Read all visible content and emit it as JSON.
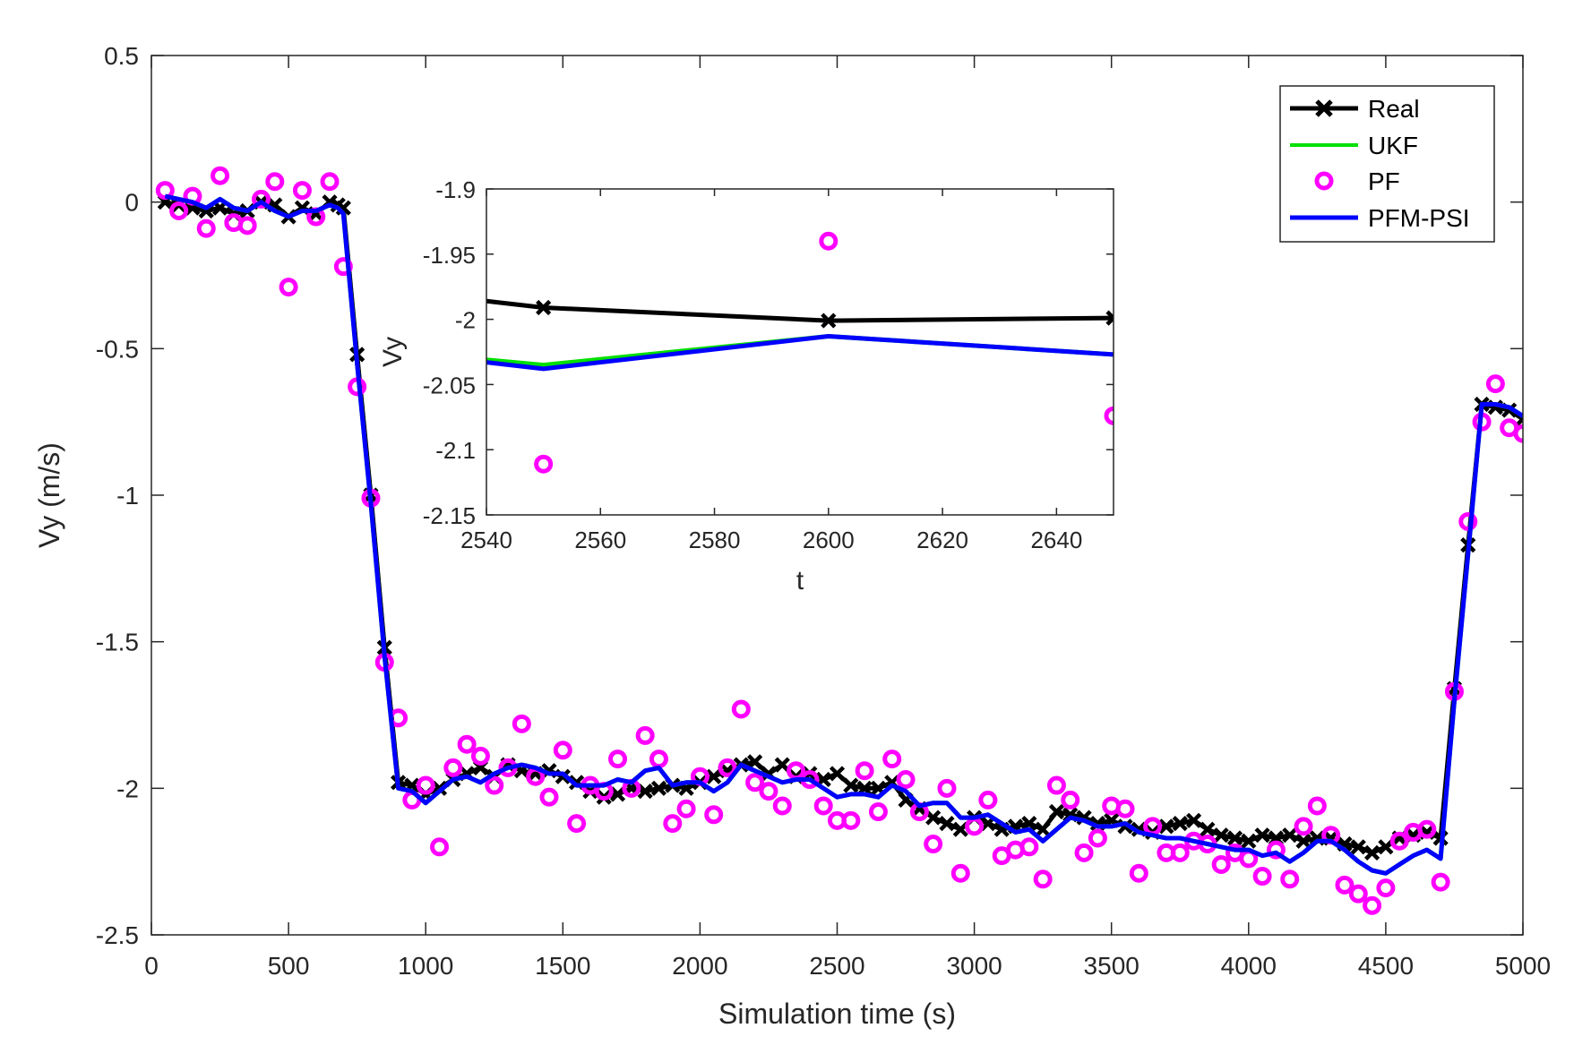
{
  "chart_data": [
    {
      "type": "line",
      "id": "main",
      "xlabel": "Simulation time  (s)",
      "ylabel": "Vy (m/s)",
      "xlim": [
        0,
        5000
      ],
      "ylim": [
        -2.5,
        0.5
      ],
      "xticks": [
        0,
        500,
        1000,
        1500,
        2000,
        2500,
        3000,
        3500,
        4000,
        4500,
        5000
      ],
      "yticks": [
        0.5,
        0,
        -0.5,
        -1,
        -1.5,
        -2,
        -2.5
      ],
      "xtick_labels": [
        "0",
        "500",
        "1000",
        "1500",
        "2000",
        "2500",
        "3000",
        "3500",
        "4000",
        "4500",
        "5000"
      ],
      "ytick_labels": [
        "0.5",
        "0",
        "-0.5",
        "-1",
        "-1.5",
        "-2",
        "-2.5"
      ],
      "grid": false,
      "legend": {
        "position": "top-right",
        "entries": [
          "Real",
          "UKF",
          "PF",
          "PFM-PSI"
        ]
      },
      "series": [
        {
          "name": "Real",
          "style": "line-x-markers",
          "color": "#000000",
          "x": [
            50,
            100,
            150,
            200,
            250,
            300,
            350,
            400,
            450,
            500,
            550,
            600,
            650,
            680,
            700,
            750,
            800,
            850,
            900,
            950,
            1000,
            1050,
            1100,
            1150,
            1200,
            1250,
            1300,
            1350,
            1400,
            1450,
            1500,
            1550,
            1600,
            1650,
            1700,
            1750,
            1800,
            1850,
            1900,
            1950,
            2000,
            2050,
            2100,
            2150,
            2200,
            2250,
            2300,
            2350,
            2400,
            2450,
            2500,
            2550,
            2600,
            2650,
            2700,
            2750,
            2800,
            2850,
            2900,
            2950,
            3000,
            3050,
            3100,
            3150,
            3200,
            3250,
            3300,
            3350,
            3400,
            3450,
            3500,
            3550,
            3600,
            3650,
            3700,
            3750,
            3800,
            3850,
            3900,
            3950,
            4000,
            4050,
            4100,
            4150,
            4200,
            4250,
            4300,
            4350,
            4400,
            4450,
            4500,
            4550,
            4600,
            4650,
            4700,
            4750,
            4800,
            4850,
            4900,
            4950,
            5000
          ],
          "y": [
            0.0,
            -0.01,
            -0.02,
            -0.03,
            -0.02,
            -0.04,
            -0.03,
            0.0,
            -0.01,
            -0.05,
            -0.02,
            -0.04,
            0.0,
            -0.01,
            -0.02,
            -0.52,
            -1.0,
            -1.52,
            -1.98,
            -1.99,
            -2.02,
            -2.0,
            -1.97,
            -1.95,
            -1.93,
            -1.96,
            -1.92,
            -1.94,
            -1.95,
            -1.94,
            -1.96,
            -1.98,
            -2.01,
            -2.03,
            -2.02,
            -2.0,
            -2.01,
            -2.0,
            -1.99,
            -2.0,
            -1.98,
            -1.96,
            -1.94,
            -1.92,
            -1.91,
            -1.95,
            -1.92,
            -1.96,
            -1.95,
            -1.97,
            -1.95,
            -1.99,
            -2.0,
            -2.0,
            -1.98,
            -2.04,
            -2.07,
            -2.1,
            -2.12,
            -2.14,
            -2.1,
            -2.12,
            -2.14,
            -2.13,
            -2.12,
            -2.14,
            -2.08,
            -2.09,
            -2.1,
            -2.12,
            -2.11,
            -2.13,
            -2.14,
            -2.15,
            -2.13,
            -2.12,
            -2.11,
            -2.14,
            -2.16,
            -2.17,
            -2.18,
            -2.16,
            -2.17,
            -2.16,
            -2.18,
            -2.17,
            -2.17,
            -2.19,
            -2.2,
            -2.22,
            -2.2,
            -2.17,
            -2.16,
            -2.15,
            -2.17,
            -1.66,
            -1.17,
            -0.69,
            -0.7,
            -0.71,
            -0.74
          ]
        },
        {
          "name": "UKF",
          "style": "line",
          "color": "#00e000",
          "x": [
            50,
            100,
            150,
            200,
            250,
            300,
            350,
            400,
            450,
            500,
            550,
            600,
            650,
            680,
            700,
            750,
            800,
            850,
            900,
            950,
            1000,
            1050,
            1100,
            1150,
            1200,
            1250,
            1300,
            1350,
            1400,
            1450,
            1500,
            1550,
            1600,
            1650,
            1700,
            1750,
            1800,
            1850,
            1900,
            1950,
            2000,
            2050,
            2100,
            2150,
            2200,
            2250,
            2300,
            2350,
            2400,
            2450,
            2500,
            2550,
            2600,
            2650,
            2700,
            2750,
            2800,
            2850,
            2900,
            2950,
            3000,
            3050,
            3100,
            3150,
            3200,
            3250,
            3300,
            3350,
            3400,
            3450,
            3500,
            3550,
            3600,
            3650,
            3700,
            3750,
            3800,
            3850,
            3900,
            3950,
            4000,
            4050,
            4100,
            4150,
            4200,
            4250,
            4300,
            4350,
            4400,
            4450,
            4500,
            4550,
            4600,
            4650,
            4700,
            4750,
            4800,
            4850,
            4900,
            4950,
            5000
          ],
          "y": [
            0.02,
            0.01,
            0.0,
            -0.02,
            0.01,
            -0.02,
            -0.03,
            0.0,
            -0.03,
            -0.05,
            -0.03,
            -0.03,
            -0.01,
            -0.02,
            -0.04,
            -0.55,
            -1.03,
            -1.55,
            -2.0,
            -2.01,
            -2.05,
            -2.01,
            -1.97,
            -1.96,
            -1.98,
            -1.95,
            -1.93,
            -1.92,
            -1.93,
            -1.95,
            -1.95,
            -1.99,
            -1.99,
            -1.99,
            -1.97,
            -1.98,
            -1.94,
            -1.93,
            -1.99,
            -1.98,
            -1.98,
            -2.01,
            -1.98,
            -1.92,
            -1.94,
            -1.96,
            -1.98,
            -1.97,
            -1.97,
            -2.0,
            -2.03,
            -2.02,
            -2.02,
            -2.03,
            -1.99,
            -2.01,
            -2.06,
            -2.05,
            -2.05,
            -2.1,
            -2.1,
            -2.09,
            -2.12,
            -2.15,
            -2.14,
            -2.18,
            -2.14,
            -2.1,
            -2.11,
            -2.13,
            -2.13,
            -2.12,
            -2.15,
            -2.16,
            -2.17,
            -2.17,
            -2.18,
            -2.19,
            -2.2,
            -2.21,
            -2.21,
            -2.23,
            -2.22,
            -2.25,
            -2.22,
            -2.18,
            -2.18,
            -2.21,
            -2.25,
            -2.28,
            -2.29,
            -2.26,
            -2.23,
            -2.21,
            -2.24,
            -1.7,
            -1.2,
            -0.69,
            -0.69,
            -0.7,
            -0.73
          ]
        },
        {
          "name": "PF",
          "style": "circle-markers",
          "color": "#ff00ff",
          "x": [
            50,
            100,
            150,
            200,
            250,
            300,
            350,
            400,
            450,
            500,
            550,
            600,
            650,
            700,
            750,
            800,
            850,
            900,
            950,
            1000,
            1050,
            1100,
            1150,
            1200,
            1250,
            1300,
            1350,
            1400,
            1450,
            1500,
            1550,
            1600,
            1650,
            1700,
            1750,
            1800,
            1850,
            1900,
            1950,
            2000,
            2050,
            2100,
            2150,
            2200,
            2250,
            2300,
            2350,
            2400,
            2450,
            2500,
            2550,
            2600,
            2650,
            2700,
            2750,
            2800,
            2850,
            2900,
            2950,
            3000,
            3050,
            3100,
            3150,
            3200,
            3250,
            3300,
            3350,
            3400,
            3450,
            3500,
            3550,
            3600,
            3650,
            3700,
            3750,
            3800,
            3850,
            3900,
            3950,
            4000,
            4050,
            4100,
            4150,
            4200,
            4250,
            4300,
            4350,
            4400,
            4450,
            4500,
            4550,
            4600,
            4650,
            4700,
            4750,
            4800,
            4850,
            4900,
            4950,
            5000
          ],
          "y": [
            0.04,
            -0.03,
            0.02,
            -0.09,
            0.09,
            -0.07,
            -0.08,
            0.01,
            0.07,
            -0.29,
            0.04,
            -0.05,
            0.07,
            -0.22,
            -0.63,
            -1.01,
            -1.57,
            -1.76,
            -2.04,
            -1.99,
            -2.2,
            -1.93,
            -1.85,
            -1.89,
            -1.99,
            -1.93,
            -1.78,
            -1.96,
            -2.03,
            -1.87,
            -2.12,
            -1.99,
            -2.01,
            -1.9,
            -2.0,
            -1.82,
            -1.9,
            -2.12,
            -2.07,
            -1.96,
            -2.09,
            -1.93,
            -1.73,
            -1.98,
            -2.01,
            -2.06,
            -1.94,
            -1.97,
            -2.06,
            -2.11,
            -2.11,
            -1.94,
            -2.08,
            -1.9,
            -1.97,
            -2.08,
            -2.19,
            -2.0,
            -2.29,
            -2.13,
            -2.04,
            -2.23,
            -2.21,
            -2.2,
            -2.31,
            -1.99,
            -2.04,
            -2.22,
            -2.17,
            -2.06,
            -2.07,
            -2.29,
            -2.13,
            -2.22,
            -2.22,
            -2.18,
            -2.19,
            -2.26,
            -2.22,
            -2.24,
            -2.3,
            -2.21,
            -2.31,
            -2.13,
            -2.06,
            -2.16,
            -2.33,
            -2.36,
            -2.4,
            -2.34,
            -2.18,
            -2.15,
            -2.14,
            -2.32,
            -1.67,
            -1.09,
            -0.75,
            -0.62,
            -0.77,
            -0.79
          ]
        },
        {
          "name": "PFM-PSI",
          "style": "line",
          "color": "#0000ff",
          "x": [
            50,
            100,
            150,
            200,
            250,
            300,
            350,
            400,
            450,
            500,
            550,
            600,
            650,
            680,
            700,
            750,
            800,
            850,
            900,
            950,
            1000,
            1050,
            1100,
            1150,
            1200,
            1250,
            1300,
            1350,
            1400,
            1450,
            1500,
            1550,
            1600,
            1650,
            1700,
            1750,
            1800,
            1850,
            1900,
            1950,
            2000,
            2050,
            2100,
            2150,
            2200,
            2250,
            2300,
            2350,
            2400,
            2450,
            2500,
            2550,
            2600,
            2650,
            2700,
            2750,
            2800,
            2850,
            2900,
            2950,
            3000,
            3050,
            3100,
            3150,
            3200,
            3250,
            3300,
            3350,
            3400,
            3450,
            3500,
            3550,
            3600,
            3650,
            3700,
            3750,
            3800,
            3850,
            3900,
            3950,
            4000,
            4050,
            4100,
            4150,
            4200,
            4250,
            4300,
            4350,
            4400,
            4450,
            4500,
            4550,
            4600,
            4650,
            4700,
            4750,
            4800,
            4850,
            4900,
            4950,
            5000
          ],
          "y": [
            0.02,
            0.01,
            0.0,
            -0.02,
            0.01,
            -0.02,
            -0.03,
            0.0,
            -0.03,
            -0.05,
            -0.03,
            -0.03,
            -0.01,
            -0.02,
            -0.04,
            -0.55,
            -1.03,
            -1.55,
            -2.0,
            -2.01,
            -2.05,
            -2.01,
            -1.97,
            -1.96,
            -1.98,
            -1.95,
            -1.93,
            -1.92,
            -1.93,
            -1.95,
            -1.95,
            -1.99,
            -1.99,
            -1.99,
            -1.97,
            -1.98,
            -1.94,
            -1.93,
            -1.99,
            -1.98,
            -1.98,
            -2.01,
            -1.98,
            -1.92,
            -1.94,
            -1.96,
            -1.98,
            -1.97,
            -1.97,
            -2.0,
            -2.03,
            -2.02,
            -2.02,
            -2.03,
            -1.99,
            -2.01,
            -2.06,
            -2.05,
            -2.05,
            -2.1,
            -2.1,
            -2.09,
            -2.12,
            -2.15,
            -2.14,
            -2.18,
            -2.14,
            -2.1,
            -2.11,
            -2.13,
            -2.13,
            -2.12,
            -2.15,
            -2.16,
            -2.17,
            -2.17,
            -2.18,
            -2.19,
            -2.2,
            -2.21,
            -2.21,
            -2.23,
            -2.22,
            -2.25,
            -2.22,
            -2.18,
            -2.18,
            -2.21,
            -2.25,
            -2.28,
            -2.29,
            -2.26,
            -2.23,
            -2.21,
            -2.24,
            -1.7,
            -1.2,
            -0.69,
            -0.69,
            -0.7,
            -0.73
          ]
        }
      ]
    },
    {
      "type": "line",
      "id": "inset",
      "xlabel": "t",
      "ylabel": "Vy",
      "xlim": [
        2540,
        2650
      ],
      "ylim": [
        -2.15,
        -1.9
      ],
      "xticks": [
        2540,
        2560,
        2580,
        2600,
        2620,
        2640
      ],
      "yticks": [
        -1.9,
        -1.95,
        -2,
        -2.05,
        -2.1,
        -2.15
      ],
      "xtick_labels": [
        "2540",
        "2560",
        "2580",
        "2600",
        "2620",
        "2640"
      ],
      "ytick_labels": [
        "-1.9",
        "-1.95",
        "-2",
        "-2.05",
        "-2.1",
        "-2.15"
      ],
      "grid": false,
      "series": [
        {
          "name": "Real",
          "style": "line-x-markers",
          "color": "#000000",
          "x": [
            2540,
            2550,
            2600,
            2650
          ],
          "y": [
            -1.986,
            -1.991,
            -2.001,
            -1.999
          ],
          "markers_at": [
            2550,
            2600,
            2650
          ]
        },
        {
          "name": "UKF",
          "style": "line",
          "color": "#00e000",
          "x": [
            2540,
            2550,
            2600,
            2650
          ],
          "y": [
            -2.031,
            -2.035,
            -2.013,
            -2.027
          ]
        },
        {
          "name": "PF",
          "style": "circle-markers",
          "color": "#ff00ff",
          "x": [
            2550,
            2600,
            2650
          ],
          "y": [
            -2.111,
            -1.94,
            -2.074
          ]
        },
        {
          "name": "PFM-PSI",
          "style": "line",
          "color": "#0000ff",
          "x": [
            2540,
            2550,
            2600,
            2650
          ],
          "y": [
            -2.033,
            -2.038,
            -2.013,
            -2.027
          ]
        }
      ]
    }
  ]
}
